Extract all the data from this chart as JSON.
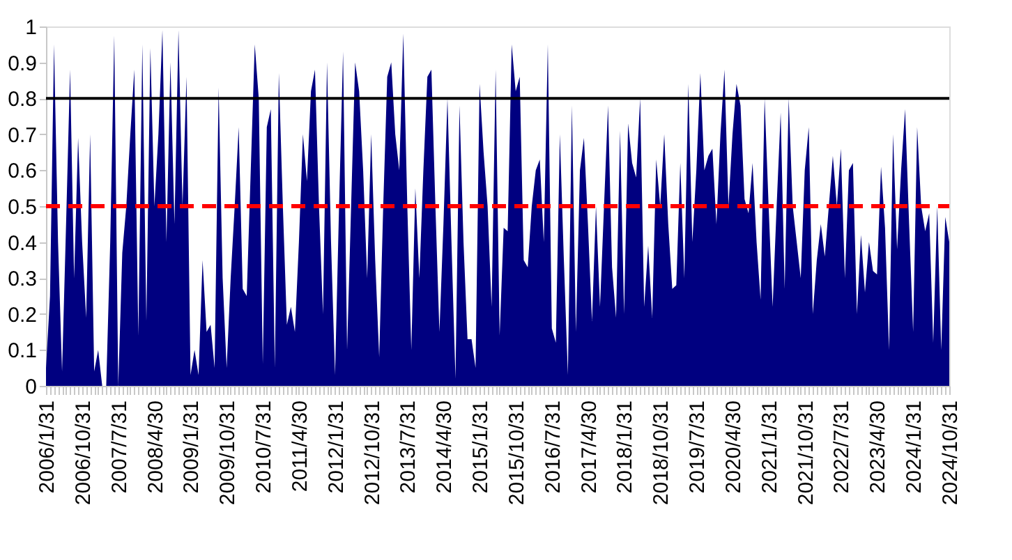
{
  "chart_data": {
    "type": "area",
    "categories": [
      "2006/1/31",
      null,
      null,
      null,
      null,
      null,
      null,
      null,
      null,
      "2006/10/31",
      null,
      null,
      null,
      null,
      null,
      null,
      null,
      null,
      "2007/7/31",
      null,
      null,
      null,
      null,
      null,
      null,
      null,
      null,
      "2008/4/30",
      null,
      null,
      null,
      null,
      null,
      null,
      null,
      null,
      "2009/1/31",
      null,
      null,
      null,
      null,
      null,
      null,
      null,
      null,
      "2009/10/31",
      null,
      null,
      null,
      null,
      null,
      null,
      null,
      null,
      "2010/7/31",
      null,
      null,
      null,
      null,
      null,
      null,
      null,
      null,
      "2011/4/30",
      null,
      null,
      null,
      null,
      null,
      null,
      null,
      null,
      "2012/1/31",
      null,
      null,
      null,
      null,
      null,
      null,
      null,
      null,
      "2012/10/31",
      null,
      null,
      null,
      null,
      null,
      null,
      null,
      null,
      "2013/7/31",
      null,
      null,
      null,
      null,
      null,
      null,
      null,
      null,
      "2014/4/30",
      null,
      null,
      null,
      null,
      null,
      null,
      null,
      null,
      "2015/1/31",
      null,
      null,
      null,
      null,
      null,
      null,
      null,
      null,
      "2015/10/31",
      null,
      null,
      null,
      null,
      null,
      null,
      null,
      null,
      "2016/7/31",
      null,
      null,
      null,
      null,
      null,
      null,
      null,
      null,
      "2017/4/30",
      null,
      null,
      null,
      null,
      null,
      null,
      null,
      null,
      "2018/1/31",
      null,
      null,
      null,
      null,
      null,
      null,
      null,
      null,
      "2018/10/31",
      null,
      null,
      null,
      null,
      null,
      null,
      null,
      null,
      "2019/7/31",
      null,
      null,
      null,
      null,
      null,
      null,
      null,
      null,
      "2020/4/30",
      null,
      null,
      null,
      null,
      null,
      null,
      null,
      null,
      "2021/1/31",
      null,
      null,
      null,
      null,
      null,
      null,
      null,
      null,
      "2021/10/31",
      null,
      null,
      null,
      null,
      null,
      null,
      null,
      null,
      "2022/7/31",
      null,
      null,
      null,
      null,
      null,
      null,
      null,
      null,
      "2023/4/30",
      null,
      null,
      null,
      null,
      null,
      null,
      null,
      null,
      "2024/1/31",
      null,
      null,
      null,
      null,
      null,
      null,
      null,
      null,
      "2024/10/31"
    ],
    "series": [
      {
        "color": "#000080",
        "values": [
          0.05,
          0.25,
          0.95,
          0.4,
          0.04,
          0.45,
          0.88,
          0.3,
          0.69,
          0.4,
          0.19,
          0.7,
          0.04,
          0.1,
          0,
          0,
          0.4,
          0.975,
          0,
          0.37,
          0.5,
          0.7,
          0.88,
          0.14,
          0.95,
          0.18,
          0.94,
          0.5,
          0.7,
          0.99,
          0.4,
          0.9,
          0.45,
          0.99,
          0.5,
          0.86,
          0.03,
          0.1,
          0.03,
          0.35,
          0.15,
          0.17,
          0.05,
          0.83,
          0.3,
          0.05,
          0.3,
          0.5,
          0.72,
          0.27,
          0.25,
          0.6,
          0.95,
          0.8,
          0.06,
          0.72,
          0.77,
          0.05,
          0.87,
          0.5,
          0.17,
          0.22,
          0.15,
          0.4,
          0.7,
          0.57,
          0.82,
          0.88,
          0.5,
          0.2,
          0.9,
          0.4,
          0.03,
          0.5,
          0.93,
          0.1,
          0.5,
          0.9,
          0.82,
          0.6,
          0.3,
          0.7,
          0.35,
          0.08,
          0.5,
          0.86,
          0.9,
          0.7,
          0.6,
          0.98,
          0.5,
          0.1,
          0.55,
          0.3,
          0.6,
          0.86,
          0.88,
          0.5,
          0.15,
          0.45,
          0.8,
          0.4,
          0.02,
          0.78,
          0.4,
          0.13,
          0.13,
          0.05,
          0.84,
          0.65,
          0.5,
          0.22,
          0.88,
          0.14,
          0.44,
          0.43,
          0.95,
          0.82,
          0.86,
          0.35,
          0.33,
          0.5,
          0.6,
          0.63,
          0.4,
          0.95,
          0.16,
          0.12,
          0.7,
          0.35,
          0.03,
          0.78,
          0.15,
          0.6,
          0.69,
          0.45,
          0.18,
          0.5,
          0.22,
          0.5,
          0.78,
          0.33,
          0.19,
          0.71,
          0.2,
          0.73,
          0.62,
          0.58,
          0.8,
          0.22,
          0.39,
          0.19,
          0.63,
          0.5,
          0.7,
          0.45,
          0.27,
          0.28,
          0.62,
          0.3,
          0.84,
          0.4,
          0.6,
          0.87,
          0.6,
          0.64,
          0.66,
          0.45,
          0.7,
          0.88,
          0.5,
          0.7,
          0.84,
          0.78,
          0.52,
          0.48,
          0.62,
          0.4,
          0.24,
          0.8,
          0.5,
          0.22,
          0.5,
          0.76,
          0.27,
          0.8,
          0.5,
          0.4,
          0.3,
          0.6,
          0.72,
          0.2,
          0.35,
          0.45,
          0.36,
          0.5,
          0.64,
          0.5,
          0.66,
          0.3,
          0.6,
          0.62,
          0.2,
          0.42,
          0.26,
          0.4,
          0.32,
          0.31,
          0.61,
          0.44,
          0.1,
          0.7,
          0.38,
          0.6,
          0.77,
          0.45,
          0.15,
          0.72,
          0.5,
          0.43,
          0.48,
          0.12,
          0.5,
          0.1,
          0.47,
          0.4
        ]
      }
    ],
    "ylim": [
      0,
      1
    ],
    "yticks": [
      0,
      0.1,
      0.2,
      0.3,
      0.4,
      0.5,
      0.6,
      0.7,
      0.8,
      0.9,
      1
    ],
    "ref_lines": [
      {
        "axis": "y",
        "value": 0.8,
        "color": "#000000",
        "line_style": "solid"
      },
      {
        "axis": "y",
        "value": 0.5,
        "color": "#ff0000",
        "line_style": "dashed"
      }
    ],
    "grid": false
  }
}
